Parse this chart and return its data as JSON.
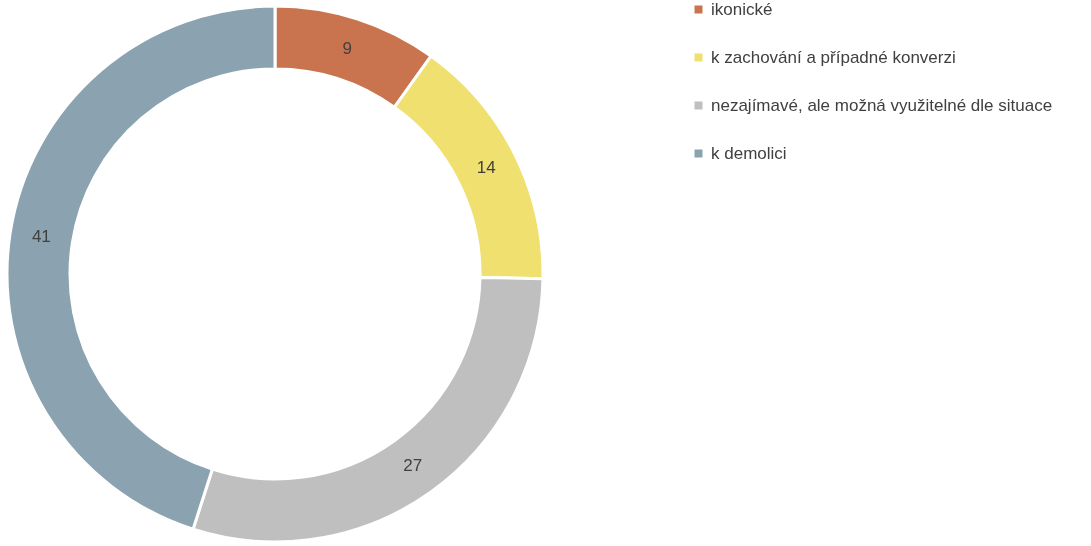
{
  "chart_data": {
    "type": "donut",
    "categories": [
      "ikonické",
      "k zachování a případné konverzi",
      "nezajímavé, ale možná využitelné dle situace",
      "k demolici"
    ],
    "values": [
      9,
      14,
      27,
      41
    ],
    "colors": [
      "#c9744f",
      "#efe070",
      "#bfbfbf",
      "#8ba3b1"
    ],
    "data_labels": true,
    "legend": "right"
  }
}
